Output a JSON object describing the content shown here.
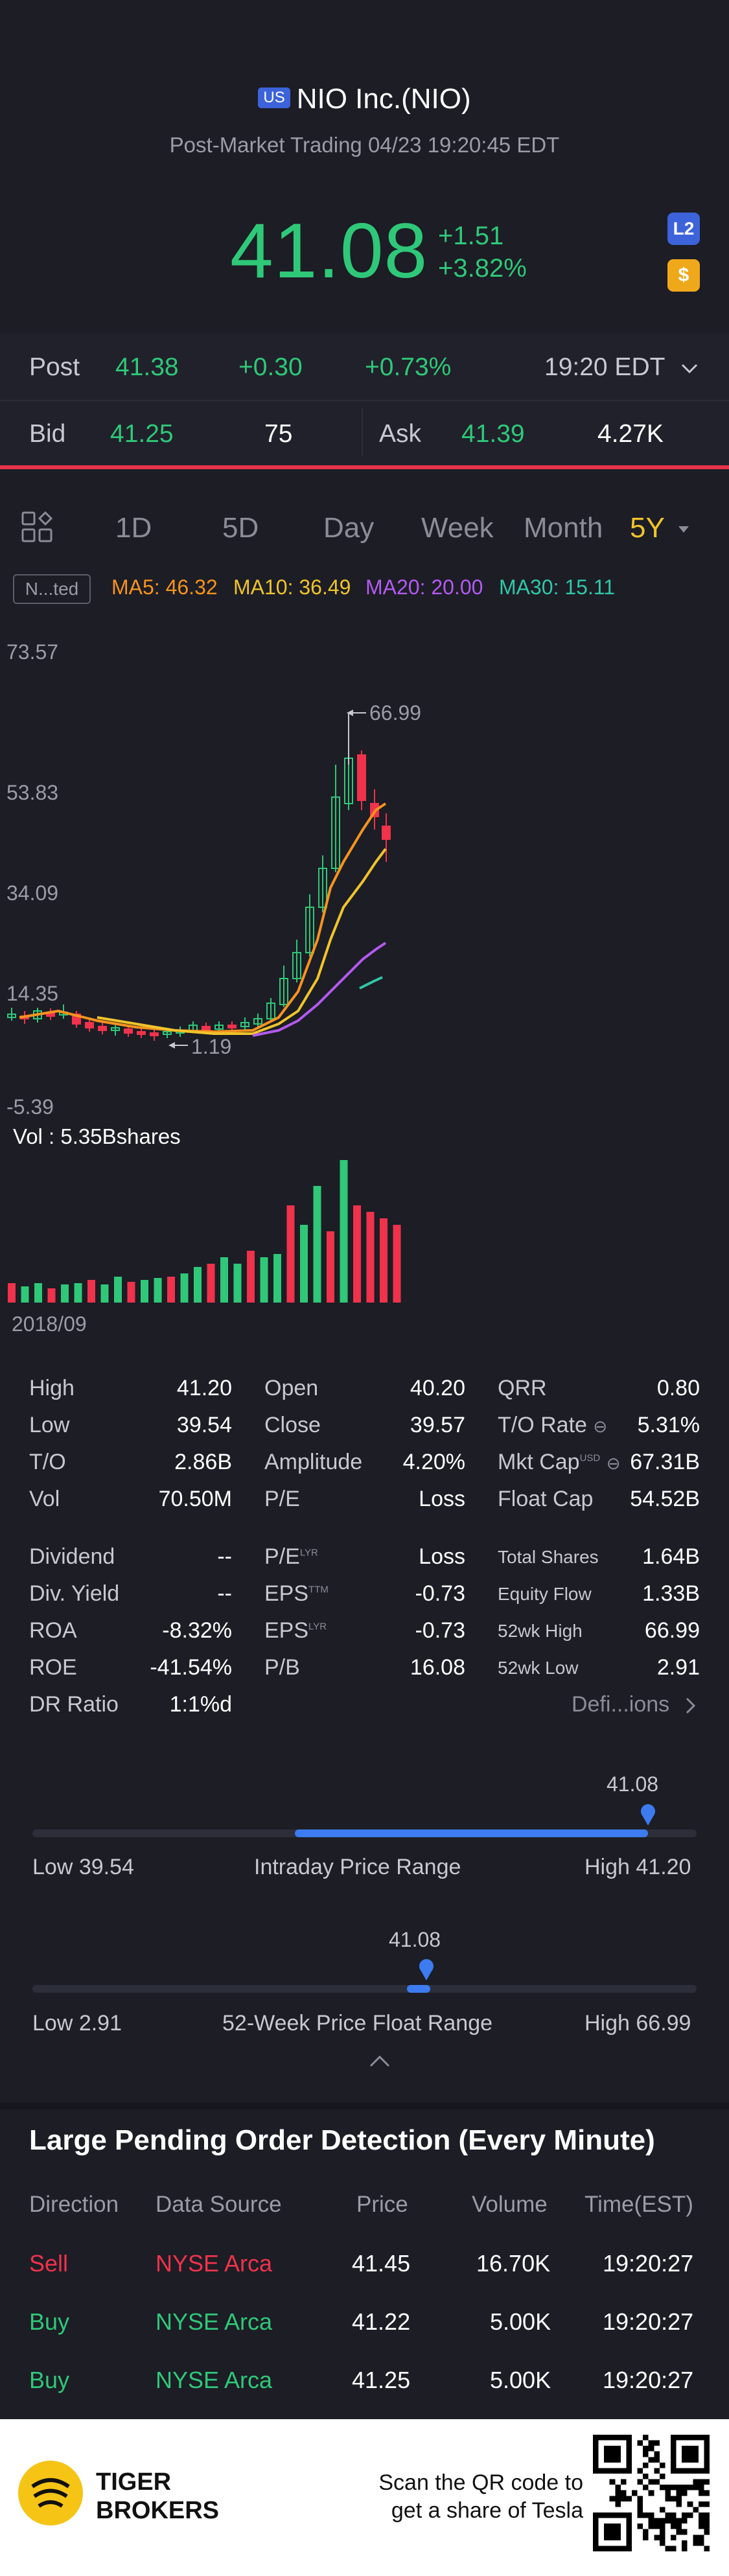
{
  "header": {
    "market_badge": "US",
    "title": "NIO Inc.(NIO)",
    "subtitle": "Post-Market Trading 04/23 19:20:45 EDT",
    "price": "41.08",
    "change_abs": "+1.51",
    "change_pct": "+3.82%",
    "l2_icon_text": "L2",
    "dollar_icon_text": "$"
  },
  "post": {
    "label": "Post",
    "price": "41.38",
    "change": "+0.30",
    "change_pct": "+0.73%",
    "time": "19:20 EDT"
  },
  "bid_ask": {
    "bid_label": "Bid",
    "bid_price": "41.25",
    "bid_size": "75",
    "ask_label": "Ask",
    "ask_price": "41.39",
    "ask_size": "4.27K"
  },
  "tabs": [
    "1D",
    "5D",
    "Day",
    "Week",
    "Month",
    "5Y"
  ],
  "ma_row": {
    "mode": "N...ted",
    "ma5": "MA5: 46.32",
    "ma10": "MA10: 36.49",
    "ma20": "MA20: 20.00",
    "ma30": "MA30: 15.11"
  },
  "chart": {
    "y_labels": [
      "73.57",
      "53.83",
      "34.09",
      "14.35",
      "-5.39"
    ],
    "high_marker": "66.99",
    "low_marker": "1.19",
    "volume_label": "Vol : 5.35Bshares",
    "start_date": "2018/09"
  },
  "stats": {
    "col1": [
      {
        "label": "High",
        "value": "41.20"
      },
      {
        "label": "Low",
        "value": "39.54"
      },
      {
        "label": "T/O",
        "value": "2.86B"
      },
      {
        "label": "Vol",
        "value": "70.50M"
      }
    ],
    "col2": [
      {
        "label": "Open",
        "value": "40.20"
      },
      {
        "label": "Close",
        "value": "39.57"
      },
      {
        "label": "Amplitude",
        "value": "4.20%"
      },
      {
        "label": "P/E",
        "value": "Loss"
      }
    ],
    "col3": [
      {
        "label": "QRR",
        "value": "0.80"
      },
      {
        "label": "T/O Rate",
        "value": "5.31%"
      },
      {
        "label": "Mkt Cap",
        "value": "67.31B"
      },
      {
        "label": "Float Cap",
        "value": "54.52B"
      }
    ],
    "col1b": [
      {
        "label": "Dividend",
        "value": "--"
      },
      {
        "label": "Div. Yield",
        "value": "--"
      },
      {
        "label": "ROA",
        "value": "-8.32%"
      },
      {
        "label": "ROE",
        "value": "-41.54%"
      },
      {
        "label": "DR Ratio",
        "value": "1:1%d"
      }
    ],
    "col2b": [
      {
        "label": "P/E",
        "sup": "LYR",
        "value": "Loss"
      },
      {
        "label": "EPS",
        "sup": "TTM",
        "value": "-0.73"
      },
      {
        "label": "EPS",
        "sup": "LYR",
        "value": "-0.73"
      },
      {
        "label": "P/B",
        "sup": "",
        "value": "16.08"
      }
    ],
    "col3b": [
      {
        "label": "Total Shares",
        "value": "1.64B"
      },
      {
        "label": "Equity Flow",
        "value": "1.33B"
      },
      {
        "label": "52wk High",
        "value": "66.99"
      },
      {
        "label": "52wk Low",
        "value": "2.91"
      }
    ],
    "mktcap_sup": "USD",
    "definitions_link": "Defi...ions"
  },
  "intraday_range": {
    "marker_value": "41.08",
    "low": "Low 39.54",
    "title": "Intraday Price Range",
    "high": "High 41.20",
    "position": 0.92
  },
  "week52_range": {
    "marker_value": "41.08",
    "low": "Low 2.91",
    "title": "52-Week Price Float Range",
    "high": "High 66.99",
    "position": 0.6
  },
  "pending_orders": {
    "title": "Large Pending Order Detection (Every Minute)",
    "headers": [
      "Direction",
      "Data Source",
      "Price",
      "Volume",
      "Time(EST)"
    ],
    "rows": [
      {
        "direction": "Sell",
        "source": "NYSE Arca",
        "price": "41.45",
        "volume": "16.70K",
        "time": "19:20:27"
      },
      {
        "direction": "Buy",
        "source": "NYSE Arca",
        "price": "41.22",
        "volume": "5.00K",
        "time": "19:20:27"
      },
      {
        "direction": "Buy",
        "source": "NYSE Arca",
        "price": "41.25",
        "volume": "5.00K",
        "time": "19:20:27"
      }
    ]
  },
  "footer": {
    "brand_line1": "TIGER",
    "brand_line2": "BROKERS",
    "scan_line1": "Scan the QR code to",
    "scan_line2": "get a share of Tesla"
  },
  "colors": {
    "up": "#2fc878",
    "down": "#f0324b",
    "accent_blue": "#3c7cf0",
    "active_tab": "#f0c42b",
    "ma5": "#f7931e",
    "ma10": "#f0c42b",
    "ma20": "#b45af0",
    "ma30": "#2fc8a8"
  }
}
